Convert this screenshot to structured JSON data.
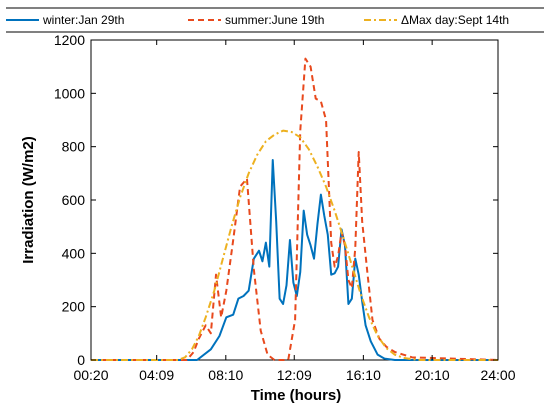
{
  "chart_data": {
    "type": "line",
    "xlabel": "Time (hours)",
    "ylabel": "Irradiation (W/m2)",
    "x_tick_labels": [
      "00:20",
      "04:09",
      "08:10",
      "12:09",
      "16:10",
      "20:10",
      "24:00"
    ],
    "x_ticks": [
      0.33,
      4.15,
      8.17,
      12.15,
      16.17,
      20.17,
      24.0
    ],
    "xlim": [
      0.33,
      24.0
    ],
    "ylim": [
      0,
      1200
    ],
    "y_ticks": [
      0,
      200,
      400,
      600,
      800,
      1000,
      1200
    ],
    "y_tick_labels": [
      "0",
      "200",
      "400",
      "600",
      "800",
      "1000",
      "1200"
    ],
    "grid": false,
    "legend_position": "top",
    "series": [
      {
        "name": "winter:Jan 29th",
        "color": "#0072BD",
        "style": "solid",
        "x": [
          0.33,
          6.5,
          7.3,
          7.8,
          8.2,
          8.6,
          8.9,
          9.2,
          9.5,
          9.8,
          10.1,
          10.3,
          10.5,
          10.7,
          10.9,
          11.1,
          11.3,
          11.5,
          11.7,
          11.9,
          12.1,
          12.3,
          12.5,
          12.7,
          12.9,
          13.1,
          13.3,
          13.5,
          13.7,
          13.9,
          14.1,
          14.3,
          14.5,
          14.7,
          14.9,
          15.1,
          15.3,
          15.5,
          15.7,
          15.9,
          16.1,
          16.3,
          16.6,
          17.0,
          17.4,
          18.0,
          24.0
        ],
        "y": [
          0,
          0,
          40,
          90,
          160,
          170,
          230,
          240,
          260,
          380,
          410,
          370,
          440,
          350,
          750,
          520,
          230,
          210,
          280,
          450,
          290,
          240,
          330,
          560,
          470,
          430,
          380,
          510,
          620,
          540,
          470,
          320,
          325,
          350,
          490,
          430,
          210,
          230,
          380,
          320,
          220,
          130,
          70,
          20,
          5,
          0,
          0
        ]
      },
      {
        "name": "summer:June 19th",
        "color": "#E8491D",
        "style": "dashed",
        "x": [
          0.33,
          5.9,
          6.3,
          6.6,
          7.0,
          7.3,
          7.6,
          7.9,
          8.2,
          8.6,
          9.0,
          9.4,
          9.8,
          10.2,
          10.6,
          11.0,
          11.4,
          11.8,
          12.2,
          12.5,
          12.8,
          13.1,
          13.4,
          13.7,
          14.0,
          14.3,
          14.5,
          14.7,
          14.9,
          15.1,
          15.3,
          15.5,
          15.7,
          15.9,
          16.1,
          16.4,
          16.7,
          17.1,
          17.5,
          18.0,
          18.5,
          19.0,
          24.0
        ],
        "y": [
          0,
          0,
          30,
          80,
          130,
          100,
          320,
          160,
          260,
          450,
          650,
          680,
          340,
          110,
          20,
          0,
          0,
          0,
          150,
          860,
          1130,
          1100,
          980,
          970,
          900,
          440,
          350,
          390,
          480,
          430,
          300,
          270,
          420,
          780,
          520,
          330,
          150,
          80,
          50,
          30,
          20,
          10,
          0
        ]
      },
      {
        "name": "ΔMax day:Sept 14th",
        "color": "#EDB120",
        "style": "dashdot",
        "x": [
          0.33,
          5.4,
          5.8,
          6.2,
          6.6,
          7.0,
          7.5,
          8.0,
          8.5,
          9.0,
          9.5,
          10.0,
          10.5,
          11.0,
          11.5,
          12.0,
          12.5,
          13.0,
          13.5,
          14.0,
          14.5,
          15.0,
          15.5,
          16.0,
          16.5,
          17.0,
          17.5,
          18.0,
          18.5,
          19.0,
          19.5,
          20.0,
          24.0
        ],
        "y": [
          0,
          0,
          10,
          40,
          90,
          160,
          260,
          380,
          500,
          610,
          700,
          770,
          820,
          845,
          860,
          855,
          835,
          790,
          725,
          650,
          560,
          460,
          355,
          250,
          160,
          90,
          45,
          20,
          8,
          3,
          0,
          0,
          0
        ]
      }
    ]
  }
}
